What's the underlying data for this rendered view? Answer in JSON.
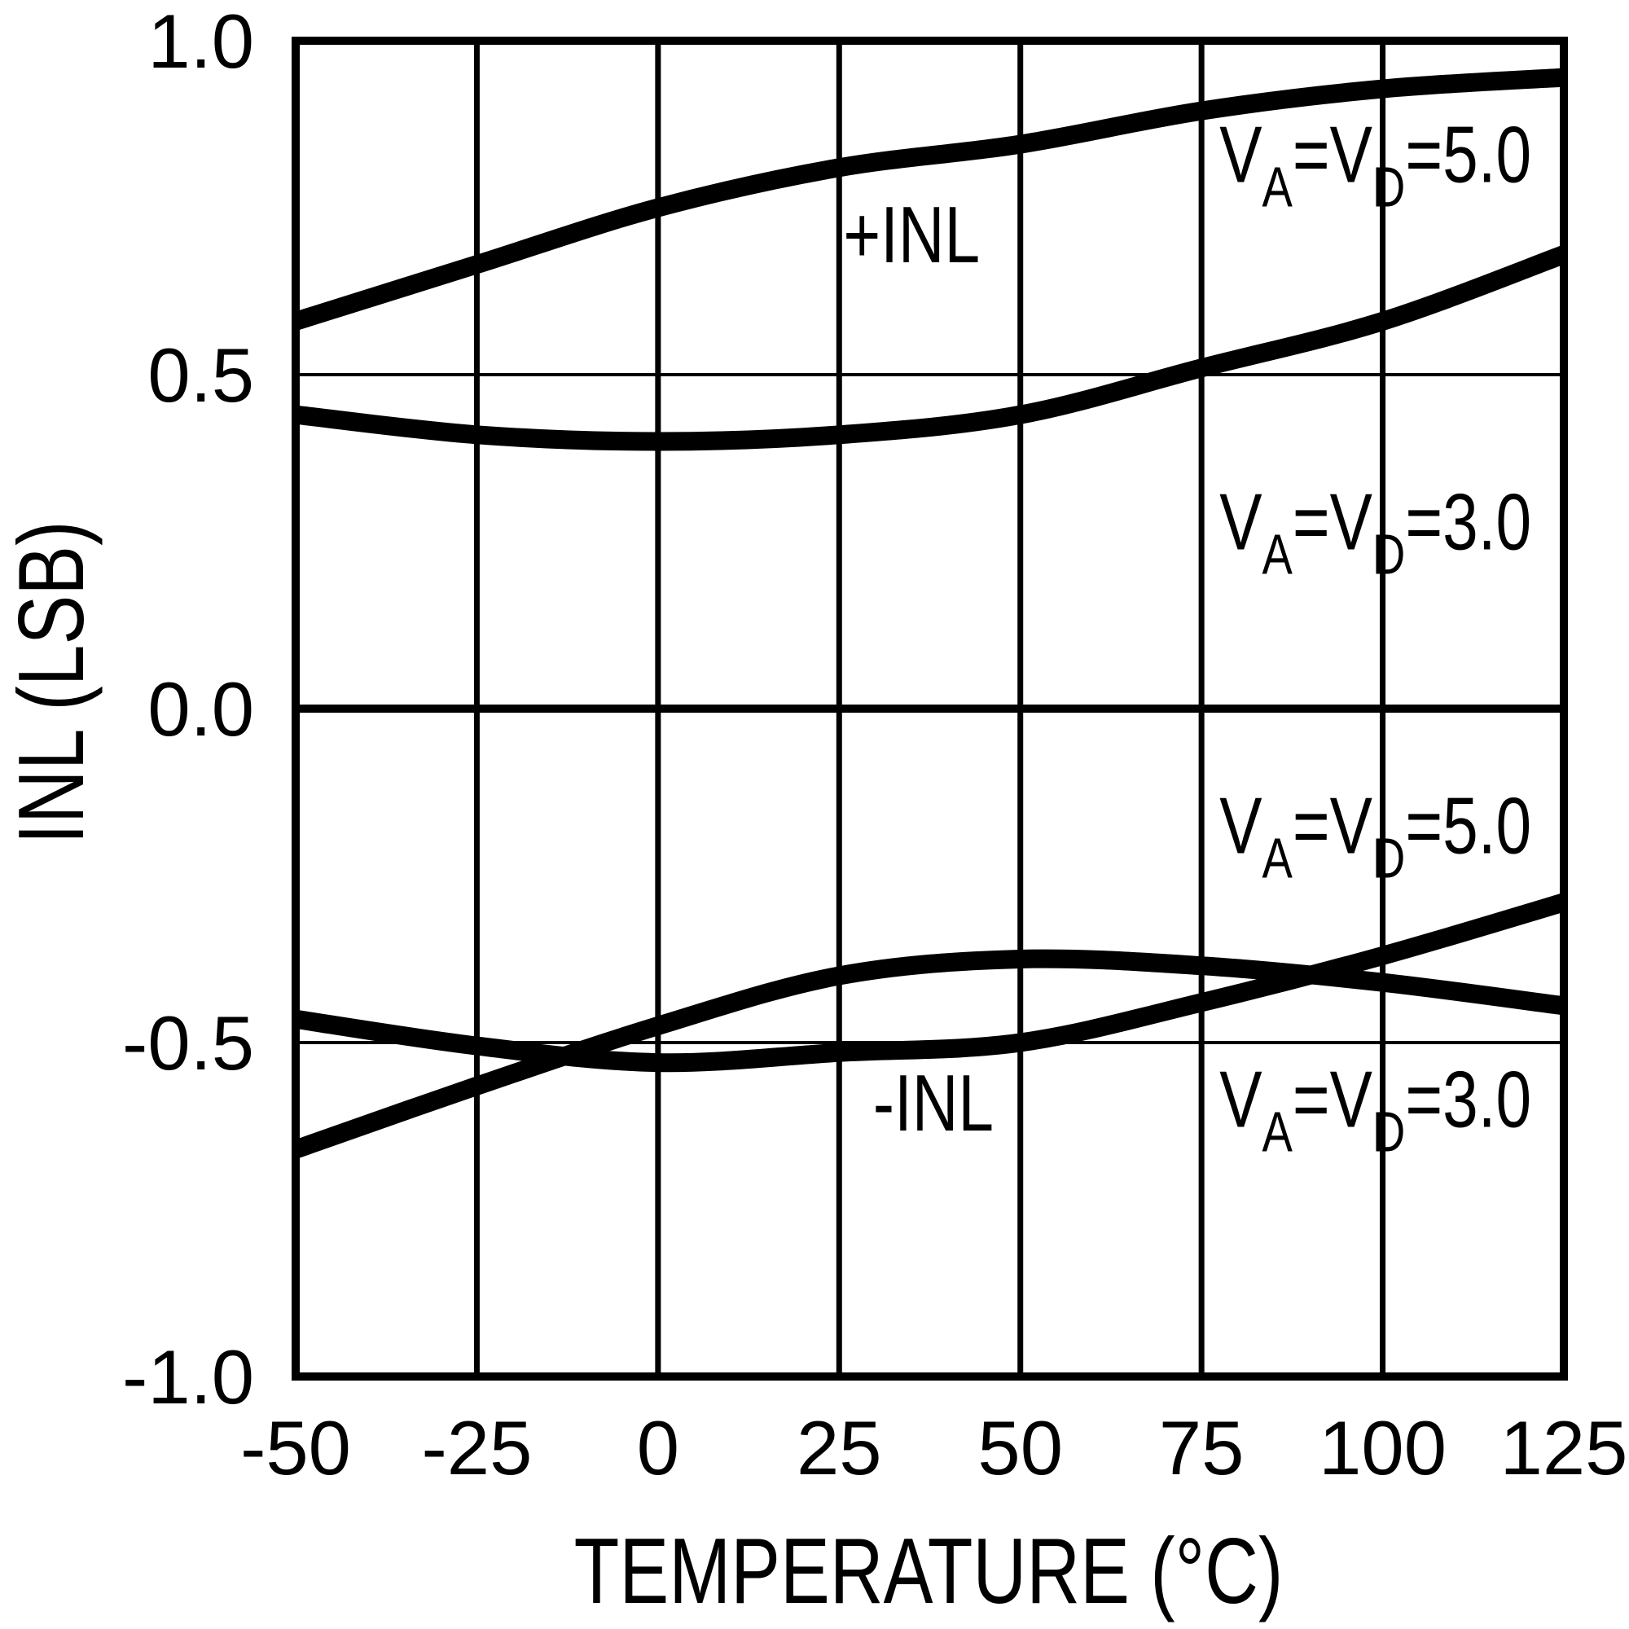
{
  "figure": {
    "background": "#ffffff",
    "ink": "#000000"
  },
  "chart_data": {
    "type": "line",
    "title": "",
    "xlabel": "TEMPERATURE (°C)",
    "ylabel": "INL (LSB)",
    "xlim": [
      -50,
      125
    ],
    "ylim": [
      -1.0,
      1.0
    ],
    "grid": true,
    "legend_position": "none",
    "x_ticks": [
      -50,
      -25,
      0,
      25,
      50,
      75,
      100,
      125
    ],
    "x_tick_labels": [
      "-50",
      "-25",
      "0",
      "25",
      "50",
      "75",
      "100",
      "125"
    ],
    "y_ticks": [
      1.0,
      0.5,
      0.0,
      -0.5,
      -1.0
    ],
    "y_tick_labels": [
      "1.0",
      "0.5",
      "0.0",
      "-0.5",
      "-1.0"
    ],
    "x": [
      -50,
      -25,
      0,
      25,
      50,
      75,
      100,
      125
    ],
    "series": [
      {
        "name": "+INL VA=VD=5.0",
        "values": [
          0.58,
          0.665,
          0.75,
          0.81,
          0.845,
          0.895,
          0.928,
          0.945
        ]
      },
      {
        "name": "+INL VA=VD=3.0",
        "values": [
          0.44,
          0.41,
          0.4,
          0.41,
          0.44,
          0.51,
          0.58,
          0.68
        ]
      },
      {
        "name": "-INL VA=VD=5.0",
        "values": [
          -0.465,
          -0.505,
          -0.53,
          -0.515,
          -0.5,
          -0.44,
          -0.37,
          -0.29
        ]
      },
      {
        "name": "-INL VA=VD=3.0",
        "values": [
          -0.66,
          -0.565,
          -0.475,
          -0.4,
          -0.375,
          -0.385,
          -0.41,
          -0.445
        ]
      }
    ],
    "annotations": [
      {
        "name": "plus-inl-label",
        "t": 35,
        "lsb": 0.71,
        "parts": [
          [
            "+INL",
            0
          ]
        ]
      },
      {
        "name": "va-vd-5p0-top-label",
        "t": 99,
        "lsb": 0.83,
        "parts": [
          [
            "V",
            0
          ],
          [
            "A",
            1
          ],
          [
            "=V",
            0
          ],
          [
            "D",
            1
          ],
          [
            "=5.0",
            0
          ]
        ]
      },
      {
        "name": "va-vd-3p0-mid-label",
        "t": 99,
        "lsb": 0.28,
        "parts": [
          [
            "V",
            0
          ],
          [
            "A",
            1
          ],
          [
            "=V",
            0
          ],
          [
            "D",
            1
          ],
          [
            "=3.0",
            0
          ]
        ]
      },
      {
        "name": "va-vd-5p0-low-label",
        "t": 99,
        "lsb": -0.175,
        "parts": [
          [
            "V",
            0
          ],
          [
            "A",
            1
          ],
          [
            "=V",
            0
          ],
          [
            "D",
            1
          ],
          [
            "=5.0",
            0
          ]
        ]
      },
      {
        "name": "minus-inl-label",
        "t": 38,
        "lsb": -0.59,
        "parts": [
          [
            "-INL",
            0
          ]
        ]
      },
      {
        "name": "va-vd-3p0-bot-label",
        "t": 99,
        "lsb": -0.585,
        "parts": [
          [
            "V",
            0
          ],
          [
            "A",
            1
          ],
          [
            "=V",
            0
          ],
          [
            "D",
            1
          ],
          [
            "=3.0",
            0
          ]
        ]
      }
    ]
  }
}
